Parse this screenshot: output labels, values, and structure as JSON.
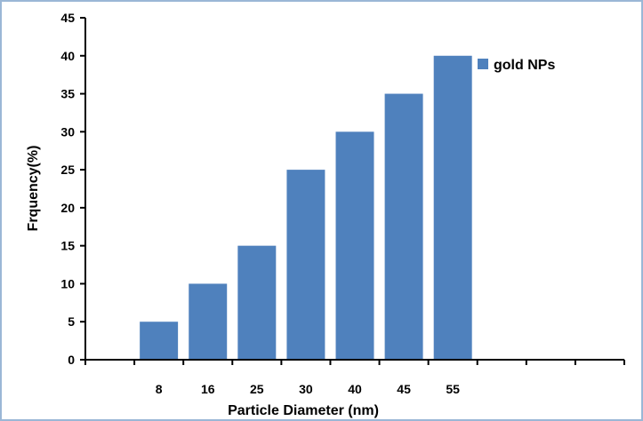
{
  "chart_data": {
    "type": "bar",
    "categories": [
      "",
      "8",
      "16",
      "25",
      "30",
      "40",
      "45",
      "55",
      "",
      "",
      ""
    ],
    "series": [
      {
        "name": "gold NPs",
        "values": [
          null,
          5,
          10,
          15,
          25,
          30,
          35,
          40,
          null,
          null,
          null
        ]
      }
    ],
    "title": "",
    "xlabel": "Particle Diameter (nm)",
    "ylabel": "Frquency(%)",
    "ylim": [
      0,
      45
    ],
    "yticks": [
      0,
      5,
      10,
      15,
      20,
      25,
      30,
      35,
      40,
      45
    ],
    "grid": false,
    "legend_position": "top-right",
    "colors": {
      "bar": "#4f81bd",
      "axis": "#000000",
      "frame": "#9bb7d6"
    }
  }
}
